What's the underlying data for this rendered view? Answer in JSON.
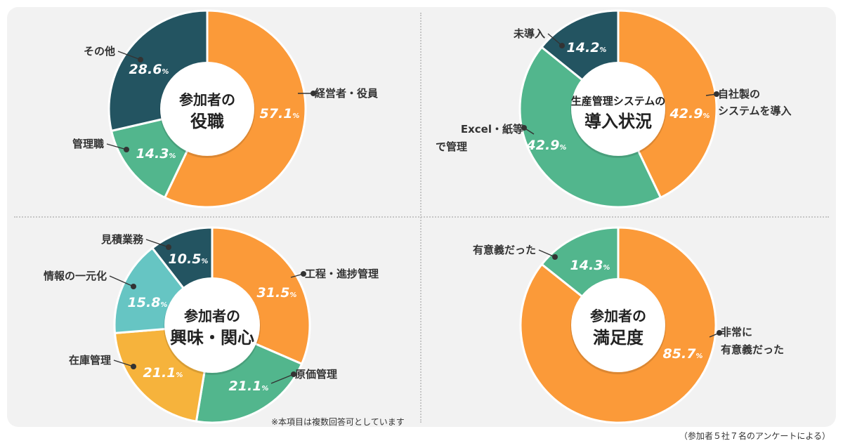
{
  "colors": {
    "orange": "#fb9a39",
    "dark_teal": "#235461",
    "green": "#52b68d",
    "light_teal": "#66c5c3",
    "yellow": "#f6b33c"
  },
  "chart_data": [
    {
      "type": "pie",
      "title_lines": [
        "参加者の",
        "役職"
      ],
      "slices": [
        {
          "label": "経営者・役員",
          "value": 57.1,
          "color": "#fb9a39"
        },
        {
          "label": "管理職",
          "value": 14.3,
          "color": "#52b68d"
        },
        {
          "label": "その他",
          "value": 28.6,
          "color": "#235461"
        }
      ]
    },
    {
      "type": "pie",
      "title_lines": [
        "生産管理システムの",
        "導入状況"
      ],
      "slices": [
        {
          "label": "自社製の\nシステムを導入",
          "value": 42.9,
          "color": "#fb9a39"
        },
        {
          "label": "Excel・紙等\nで管理",
          "value": 42.9,
          "color": "#52b68d"
        },
        {
          "label": "未導入",
          "value": 14.2,
          "color": "#235461"
        }
      ]
    },
    {
      "type": "pie",
      "title_lines": [
        "参加者の",
        "興味・関心"
      ],
      "slices": [
        {
          "label": "工程・進捗管理",
          "value": 31.5,
          "color": "#fb9a39"
        },
        {
          "label": "原価管理",
          "value": 21.1,
          "color": "#52b68d"
        },
        {
          "label": "在庫管理",
          "value": 21.1,
          "color": "#f6b33c"
        },
        {
          "label": "情報の一元化",
          "value": 15.8,
          "color": "#66c5c3"
        },
        {
          "label": "見積業務",
          "value": 10.5,
          "color": "#235461"
        }
      ]
    },
    {
      "type": "pie",
      "title_lines": [
        "参加者の",
        "満足度"
      ],
      "slices": [
        {
          "label": "非常に\n有意義だった",
          "value": 85.7,
          "color": "#fb9a39"
        },
        {
          "label": "有意義だった",
          "value": 14.3,
          "color": "#52b68d"
        }
      ]
    }
  ],
  "note": "※本項目は複数回答可としています",
  "footer": "（参加者５社７名のアンケートによる）",
  "percent_sign": "%"
}
